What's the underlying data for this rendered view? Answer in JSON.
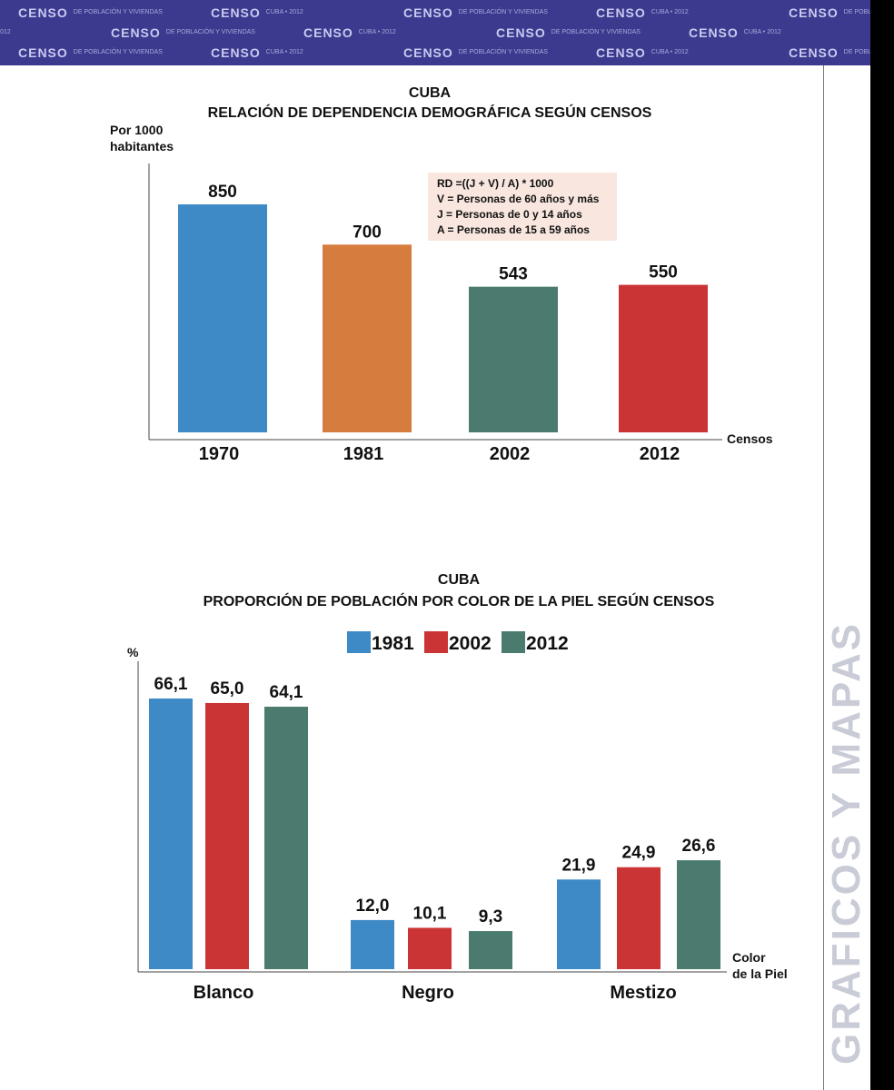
{
  "banner": {
    "word": "CENSO",
    "sub1": "DE POBLACIÓN Y VIVIENDAS",
    "sub2": "CUBA • 2012"
  },
  "side_label": "GRAFICOS Y MAPAS",
  "colors": {
    "banner_bg": "#3b3a8e",
    "blue": "#3d8ac6",
    "orange": "#d67c3e",
    "green": "#4b7b6e",
    "red": "#cb3434",
    "note_bg": "#f8e6df"
  },
  "chart_data": [
    {
      "type": "bar",
      "title": "CUBA",
      "subtitle": "RELACIÓN DE DEPENDENCIA DEMOGRÁFICA SEGÚN CENSOS",
      "ylabel": [
        "Por 1000",
        "habitantes"
      ],
      "xlabel": "Censos",
      "categories": [
        "1970",
        "1981",
        "2002",
        "2012"
      ],
      "values": [
        850,
        700,
        543,
        550
      ],
      "labels": [
        "850",
        "700",
        "543",
        "550"
      ],
      "bar_colors": [
        "#3d8ac6",
        "#d67c3e",
        "#4b7b6e",
        "#cb3434"
      ],
      "ylim": [
        0,
        1000
      ],
      "grid": false,
      "note": [
        "RD =((J + V) / A) * 1000",
        "V = Personas de 60 años y más",
        "J = Personas de 0 y 14 años",
        "A = Personas de 15 a 59 años"
      ]
    },
    {
      "type": "bar",
      "title": "CUBA",
      "subtitle": "PROPORCIÓN DE POBLACIÓN POR COLOR DE LA PIEL SEGÚN CENSOS",
      "ylabel": "%",
      "xlabel": [
        "Color",
        "de la Piel"
      ],
      "categories": [
        "Blanco",
        "Negro",
        "Mestizo"
      ],
      "series": [
        {
          "name": "1981",
          "color": "#3d8ac6",
          "values": [
            66.1,
            12.0,
            21.9
          ],
          "labels": [
            "66,1",
            "12,0",
            "21,9"
          ]
        },
        {
          "name": "2002",
          "color": "#cb3434",
          "values": [
            65.0,
            10.1,
            24.9
          ],
          "labels": [
            "65,0",
            "10,1",
            "24,9"
          ]
        },
        {
          "name": "2012",
          "color": "#4b7b6e",
          "values": [
            64.1,
            9.3,
            26.6
          ],
          "labels": [
            "64,1",
            "9,3",
            "26,6"
          ]
        }
      ],
      "ylim": [
        0,
        75
      ],
      "grid": false,
      "legend": "top-center"
    }
  ]
}
